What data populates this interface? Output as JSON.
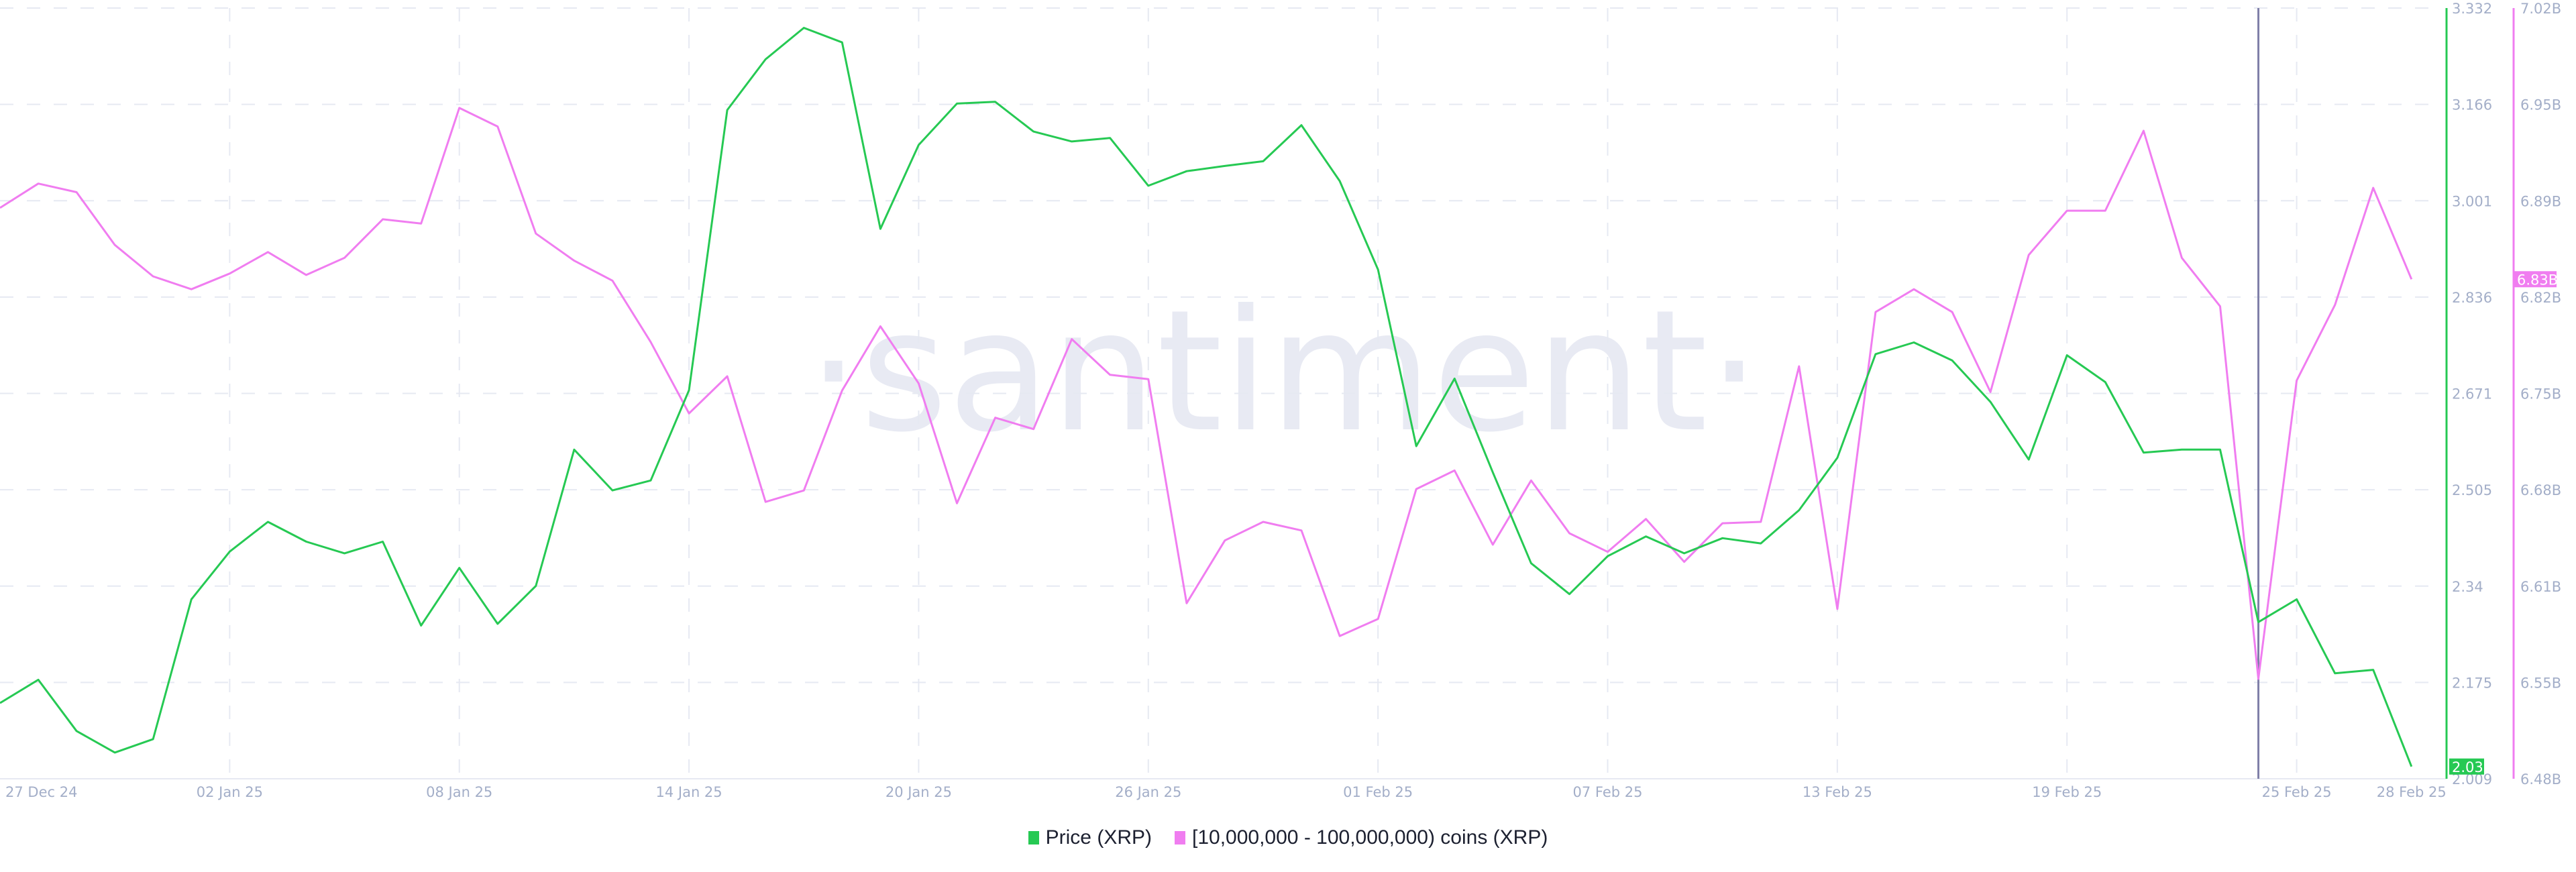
{
  "watermark": "·santiment·",
  "colors": {
    "price": "#26c953",
    "holders": "#f07df0",
    "grid": "#e6e9f2",
    "cursor": "#7f7fa8"
  },
  "legend": [
    {
      "label": "Price (XRP)",
      "color": "#26c953"
    },
    {
      "label": "[10,000,000 - 100,000,000) coins (XRP)",
      "color": "#f07df0"
    }
  ],
  "chart_data": {
    "type": "line",
    "x_start": "27 Dec 24",
    "x_end": "28 Feb 25",
    "x_interval": "daily",
    "x_ticks": [
      "27 Dec 24",
      "02 Jan 25",
      "08 Jan 25",
      "14 Jan 25",
      "20 Jan 25",
      "26 Jan 25",
      "01 Feb 25",
      "07 Feb 25",
      "13 Feb 25",
      "19 Feb 25",
      "25 Feb 25",
      "28 Feb 25"
    ],
    "grid": true,
    "legend_position": "bottom",
    "cursor_date": "24 Feb 25",
    "axes": {
      "price": {
        "side": "right",
        "range": [
          2.009,
          3.332
        ],
        "ticks": [
          "3.332",
          "3.166",
          "3.001",
          "2.836",
          "2.671",
          "2.505",
          "2.34",
          "2.175",
          "2.009"
        ],
        "last_value_label": "2.03"
      },
      "holders": {
        "side": "right",
        "range": [
          6.48,
          7.02
        ],
        "unit": "B",
        "ticks": [
          "7.02B",
          "6.95B",
          "6.89B",
          "6.82B",
          "6.75B",
          "6.68B",
          "6.61B",
          "6.55B",
          "6.48B"
        ],
        "last_value_label": "6.83B"
      }
    },
    "series": [
      {
        "name": "Price (XRP)",
        "axis": "price",
        "values": [
          2.139,
          2.179,
          2.091,
          2.054,
          2.077,
          2.317,
          2.399,
          2.45,
          2.416,
          2.396,
          2.416,
          2.272,
          2.371,
          2.275,
          2.34,
          2.574,
          2.504,
          2.521,
          2.676,
          3.157,
          3.244,
          3.298,
          3.273,
          2.953,
          3.097,
          3.168,
          3.171,
          3.12,
          3.103,
          3.109,
          3.027,
          3.052,
          3.061,
          3.069,
          3.131,
          3.035,
          2.883,
          2.58,
          2.696,
          2.535,
          2.379,
          2.326,
          2.391,
          2.425,
          2.396,
          2.422,
          2.413,
          2.47,
          2.56,
          2.738,
          2.758,
          2.727,
          2.656,
          2.557,
          2.736,
          2.69,
          2.569,
          2.574,
          2.574,
          2.278,
          2.317,
          2.19,
          2.196,
          2.03
        ]
      },
      {
        "name": "[10,000,000 - 100,000,000) coins (XRP)",
        "axis": "holders",
        "values": [
          6.88,
          6.897,
          6.891,
          6.854,
          6.832,
          6.823,
          6.834,
          6.849,
          6.833,
          6.845,
          6.872,
          6.869,
          6.95,
          6.937,
          6.862,
          6.843,
          6.829,
          6.786,
          6.736,
          6.762,
          6.674,
          6.682,
          6.752,
          6.797,
          6.757,
          6.673,
          6.733,
          6.725,
          6.788,
          6.763,
          6.76,
          6.603,
          6.647,
          6.66,
          6.654,
          6.58,
          6.592,
          6.683,
          6.696,
          6.644,
          6.689,
          6.652,
          6.639,
          6.662,
          6.632,
          6.659,
          6.66,
          6.769,
          6.599,
          6.807,
          6.823,
          6.807,
          6.751,
          6.847,
          6.878,
          6.878,
          6.934,
          6.845,
          6.811,
          6.55,
          6.759,
          6.812,
          6.894,
          6.83
        ]
      }
    ]
  }
}
